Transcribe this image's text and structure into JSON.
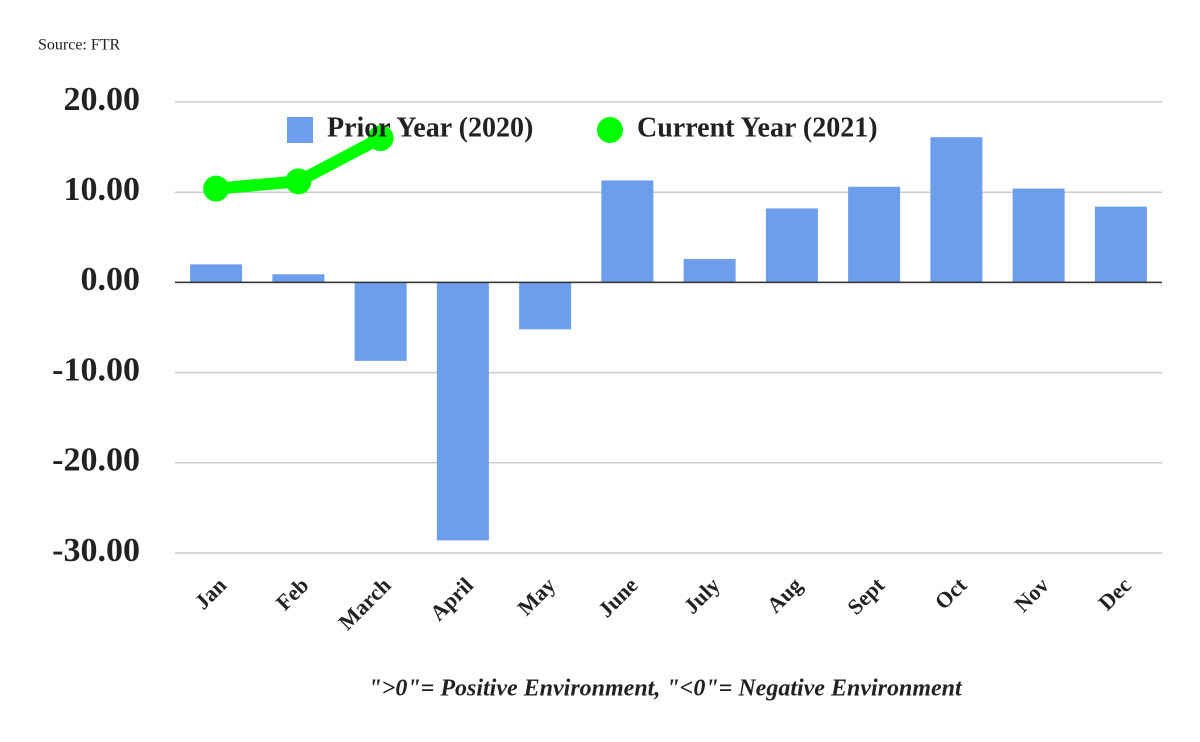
{
  "chart_data": {
    "type": "bar",
    "source": "Source: FTR",
    "note": "\">0\"= Positive Environment, \"<0\"= Negative Environment",
    "categories": [
      "Jan",
      "Feb",
      "March",
      "April",
      "May",
      "June",
      "July",
      "Aug",
      "Sept",
      "Oct",
      "Nov",
      "Dec"
    ],
    "series": [
      {
        "name": "Prior Year (2020)",
        "type": "bar",
        "color": "#6d9eeb",
        "values": [
          2.0,
          0.9,
          -8.7,
          -28.6,
          -5.2,
          11.3,
          2.6,
          8.2,
          10.6,
          16.1,
          10.4,
          8.4
        ]
      },
      {
        "name": "Current Year (2021)",
        "type": "line",
        "color": "#00ff00",
        "values": [
          10.4,
          11.2,
          16.0,
          null,
          null,
          null,
          null,
          null,
          null,
          null,
          null,
          null
        ]
      }
    ],
    "ylim": [
      -30,
      20
    ],
    "yticks": [
      {
        "value": -30,
        "label": "-30.00"
      },
      {
        "value": -20,
        "label": "-20.00"
      },
      {
        "value": -10,
        "label": "-10.00"
      },
      {
        "value": 0,
        "label": "0.00"
      },
      {
        "value": 10,
        "label": "10.00"
      },
      {
        "value": 20,
        "label": "20.00"
      }
    ],
    "grid": true,
    "legend": "top"
  }
}
